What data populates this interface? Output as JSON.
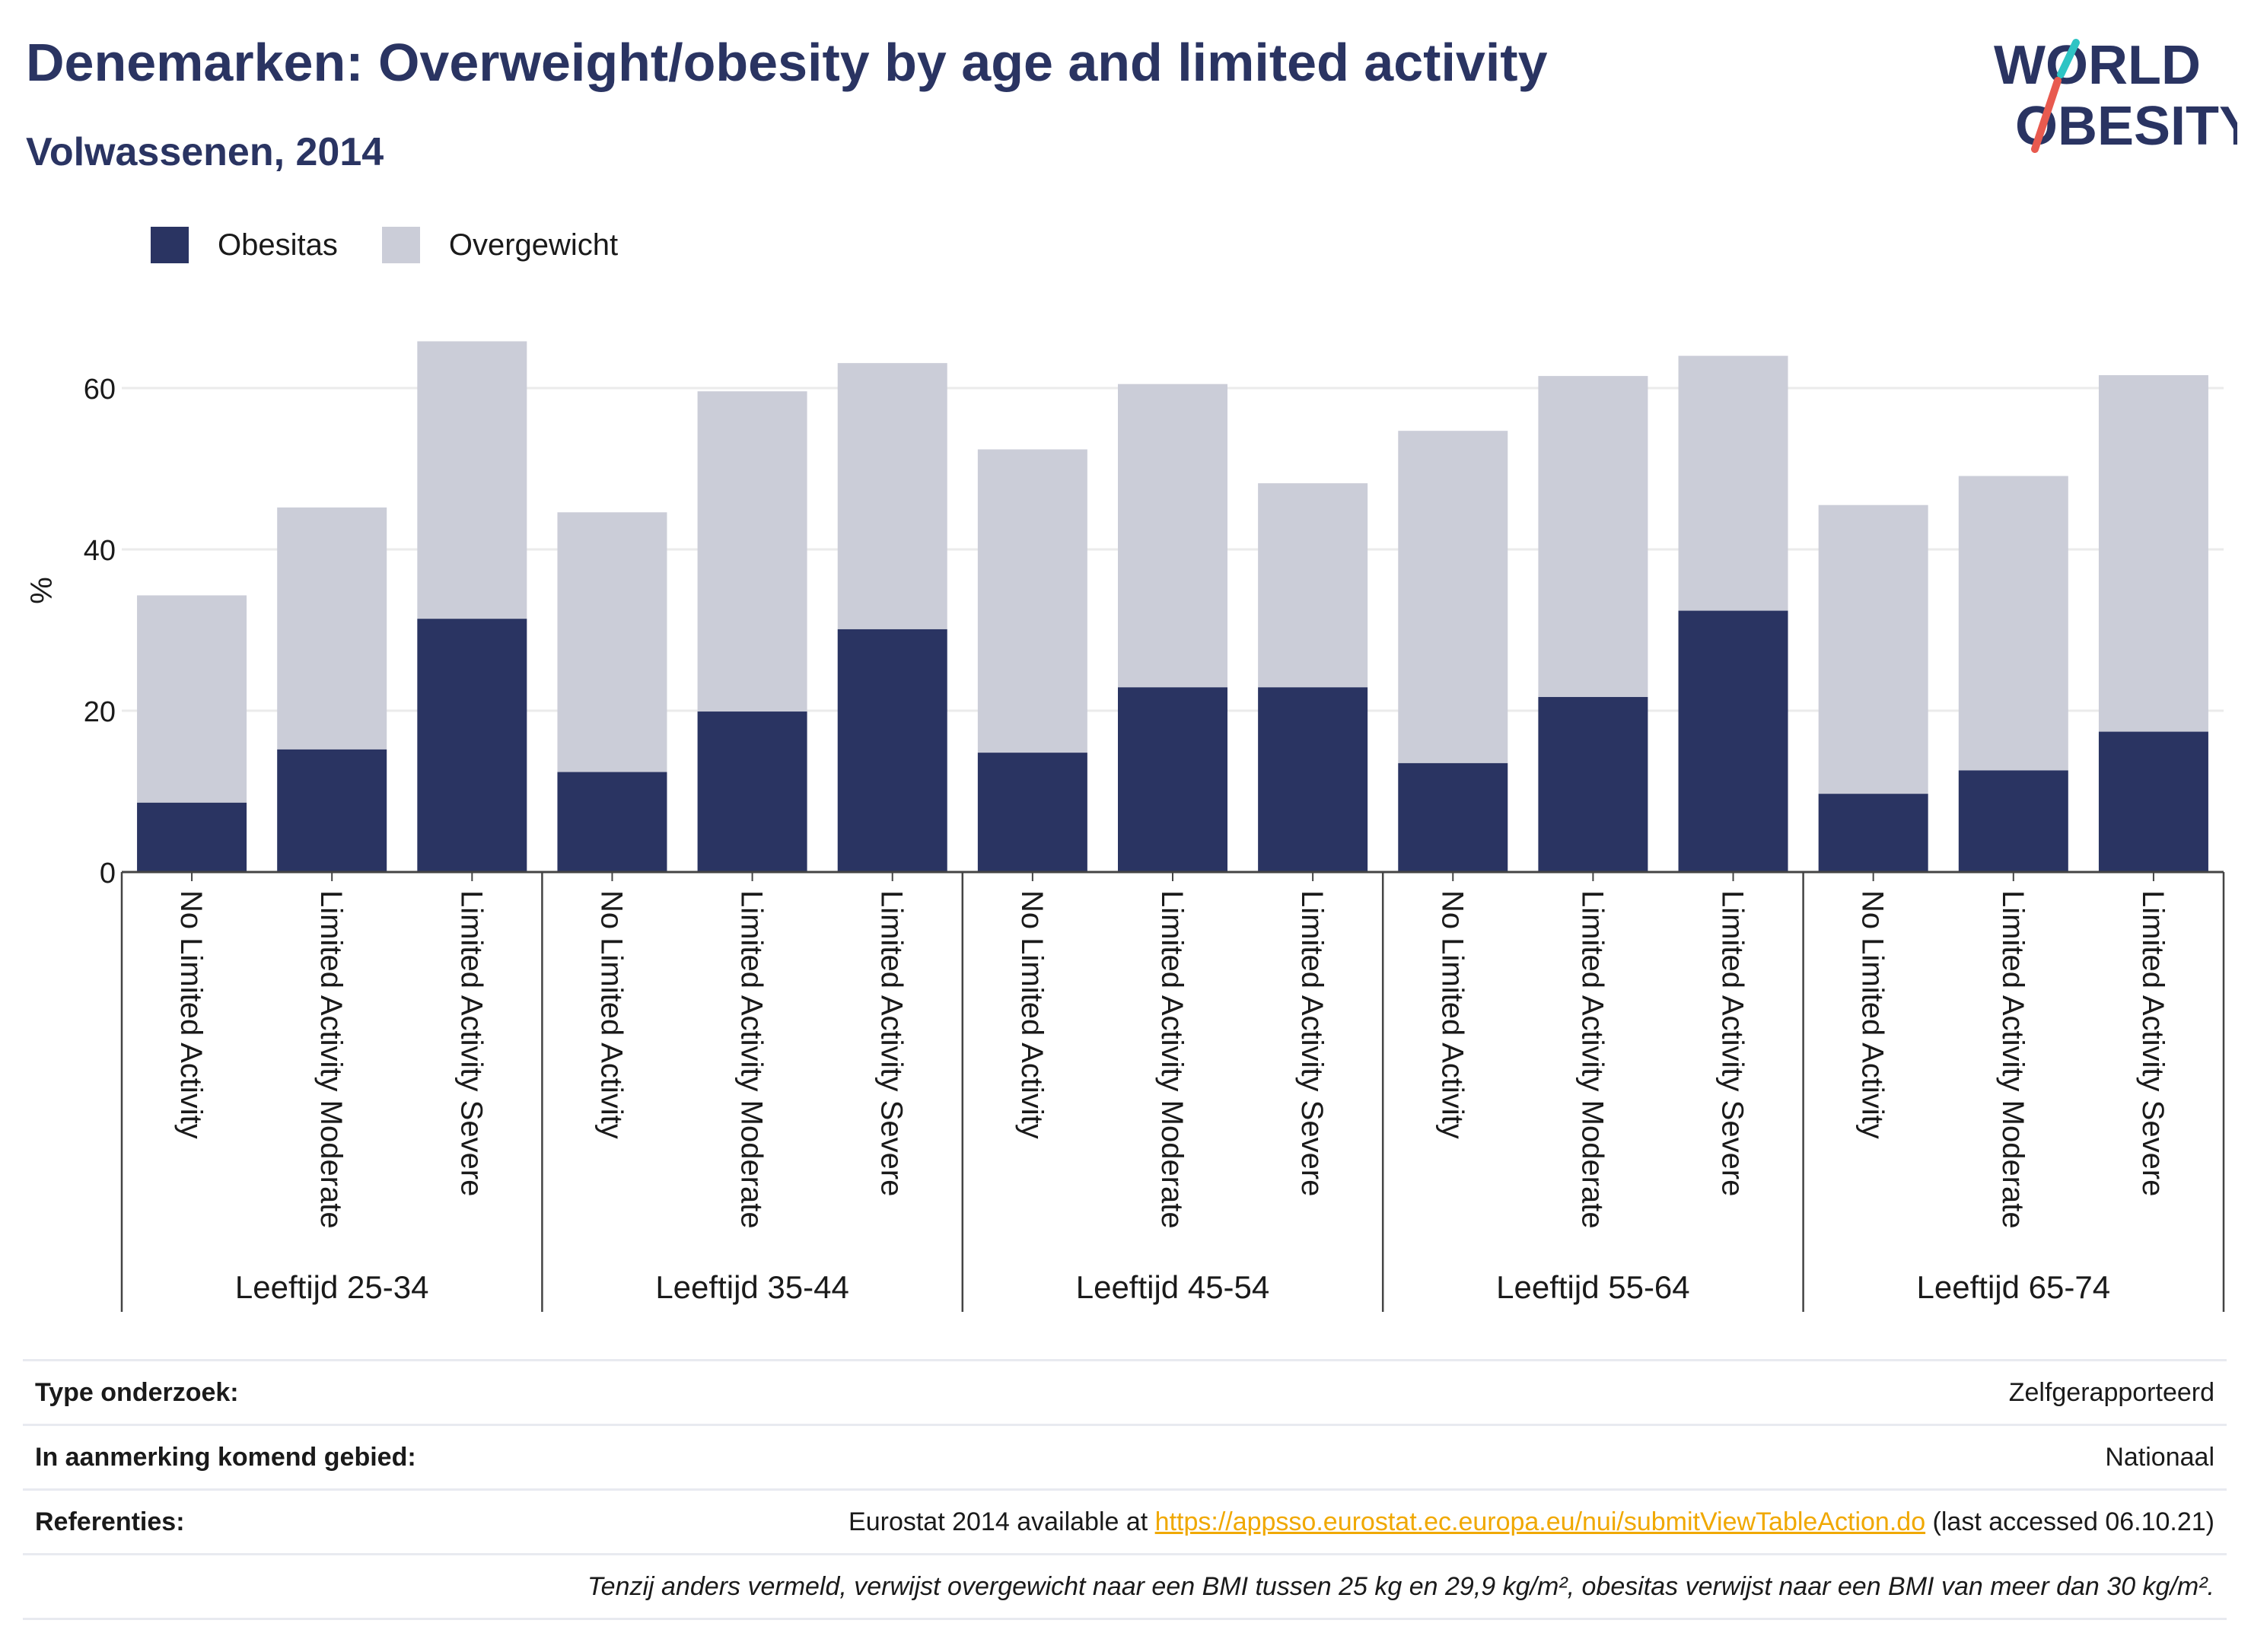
{
  "header": {
    "title": "Denemarken: Overweight/obesity by age and limited activity",
    "subtitle": "Volwassenen, 2014"
  },
  "logo": {
    "line1": "WORLD",
    "line2": "OBESITY",
    "icon": "world-obesity-logo"
  },
  "colors": {
    "obesitas": "#2a3462",
    "overgewicht": "#cbcdd8",
    "grid": "#ebebeb",
    "link": "#f0a800",
    "accent_teal": "#2ec4c4",
    "accent_red": "#e85a4f"
  },
  "legend": [
    {
      "label": "Obesitas",
      "color": "#2a3462"
    },
    {
      "label": "Overgewicht",
      "color": "#cbcdd8"
    }
  ],
  "chart_data": {
    "type": "bar",
    "stacked": true,
    "ylabel": "%",
    "ylim": [
      0,
      70
    ],
    "yticks": [
      0,
      20,
      40,
      60
    ],
    "grid": true,
    "legend_position": "top-left",
    "groups": [
      {
        "label": "Leeftijd 25-34",
        "categories": [
          "No Limited Activity",
          "Limited Activity Moderate",
          "Limited Activity Severe"
        ]
      },
      {
        "label": "Leeftijd 35-44",
        "categories": [
          "No Limited Activity",
          "Limited Activity Moderate",
          "Limited Activity Severe"
        ]
      },
      {
        "label": "Leeftijd 45-54",
        "categories": [
          "No Limited Activity",
          "Limited Activity Moderate",
          "Limited Activity Severe"
        ]
      },
      {
        "label": "Leeftijd 55-64",
        "categories": [
          "No Limited Activity",
          "Limited Activity Moderate",
          "Limited Activity Severe"
        ]
      },
      {
        "label": "Leeftijd 65-74",
        "categories": [
          "No Limited Activity",
          "Limited Activity Moderate",
          "Limited Activity Severe"
        ]
      }
    ],
    "series": [
      {
        "name": "Obesitas",
        "values": [
          8.6,
          15.2,
          31.4,
          12.4,
          19.9,
          30.1,
          14.8,
          22.9,
          22.9,
          13.5,
          21.7,
          32.4,
          9.7,
          12.6,
          17.4
        ]
      },
      {
        "name": "Overgewicht",
        "values": [
          25.7,
          30.0,
          34.4,
          32.2,
          39.7,
          33.0,
          37.6,
          37.6,
          25.3,
          41.2,
          39.8,
          31.6,
          35.8,
          36.5,
          44.2
        ]
      }
    ]
  },
  "info": {
    "study_type_label": "Type onderzoek:",
    "study_type_value": "Zelfgerapporteerd",
    "area_label": "In aanmerking komend gebied:",
    "area_value": "Nationaal",
    "references_label": "Referenties:",
    "references_prefix": "Eurostat 2014 available at ",
    "references_link": "https://appsso.eurostat.ec.europa.eu/nui/submitViewTableAction.do",
    "references_suffix": " (last accessed 06.10.21)",
    "note": "Tenzij anders vermeld, verwijst overgewicht naar een BMI tussen 25 kg en 29,9 kg/m², obesitas verwijst naar een BMI van meer dan 30 kg/m²."
  }
}
